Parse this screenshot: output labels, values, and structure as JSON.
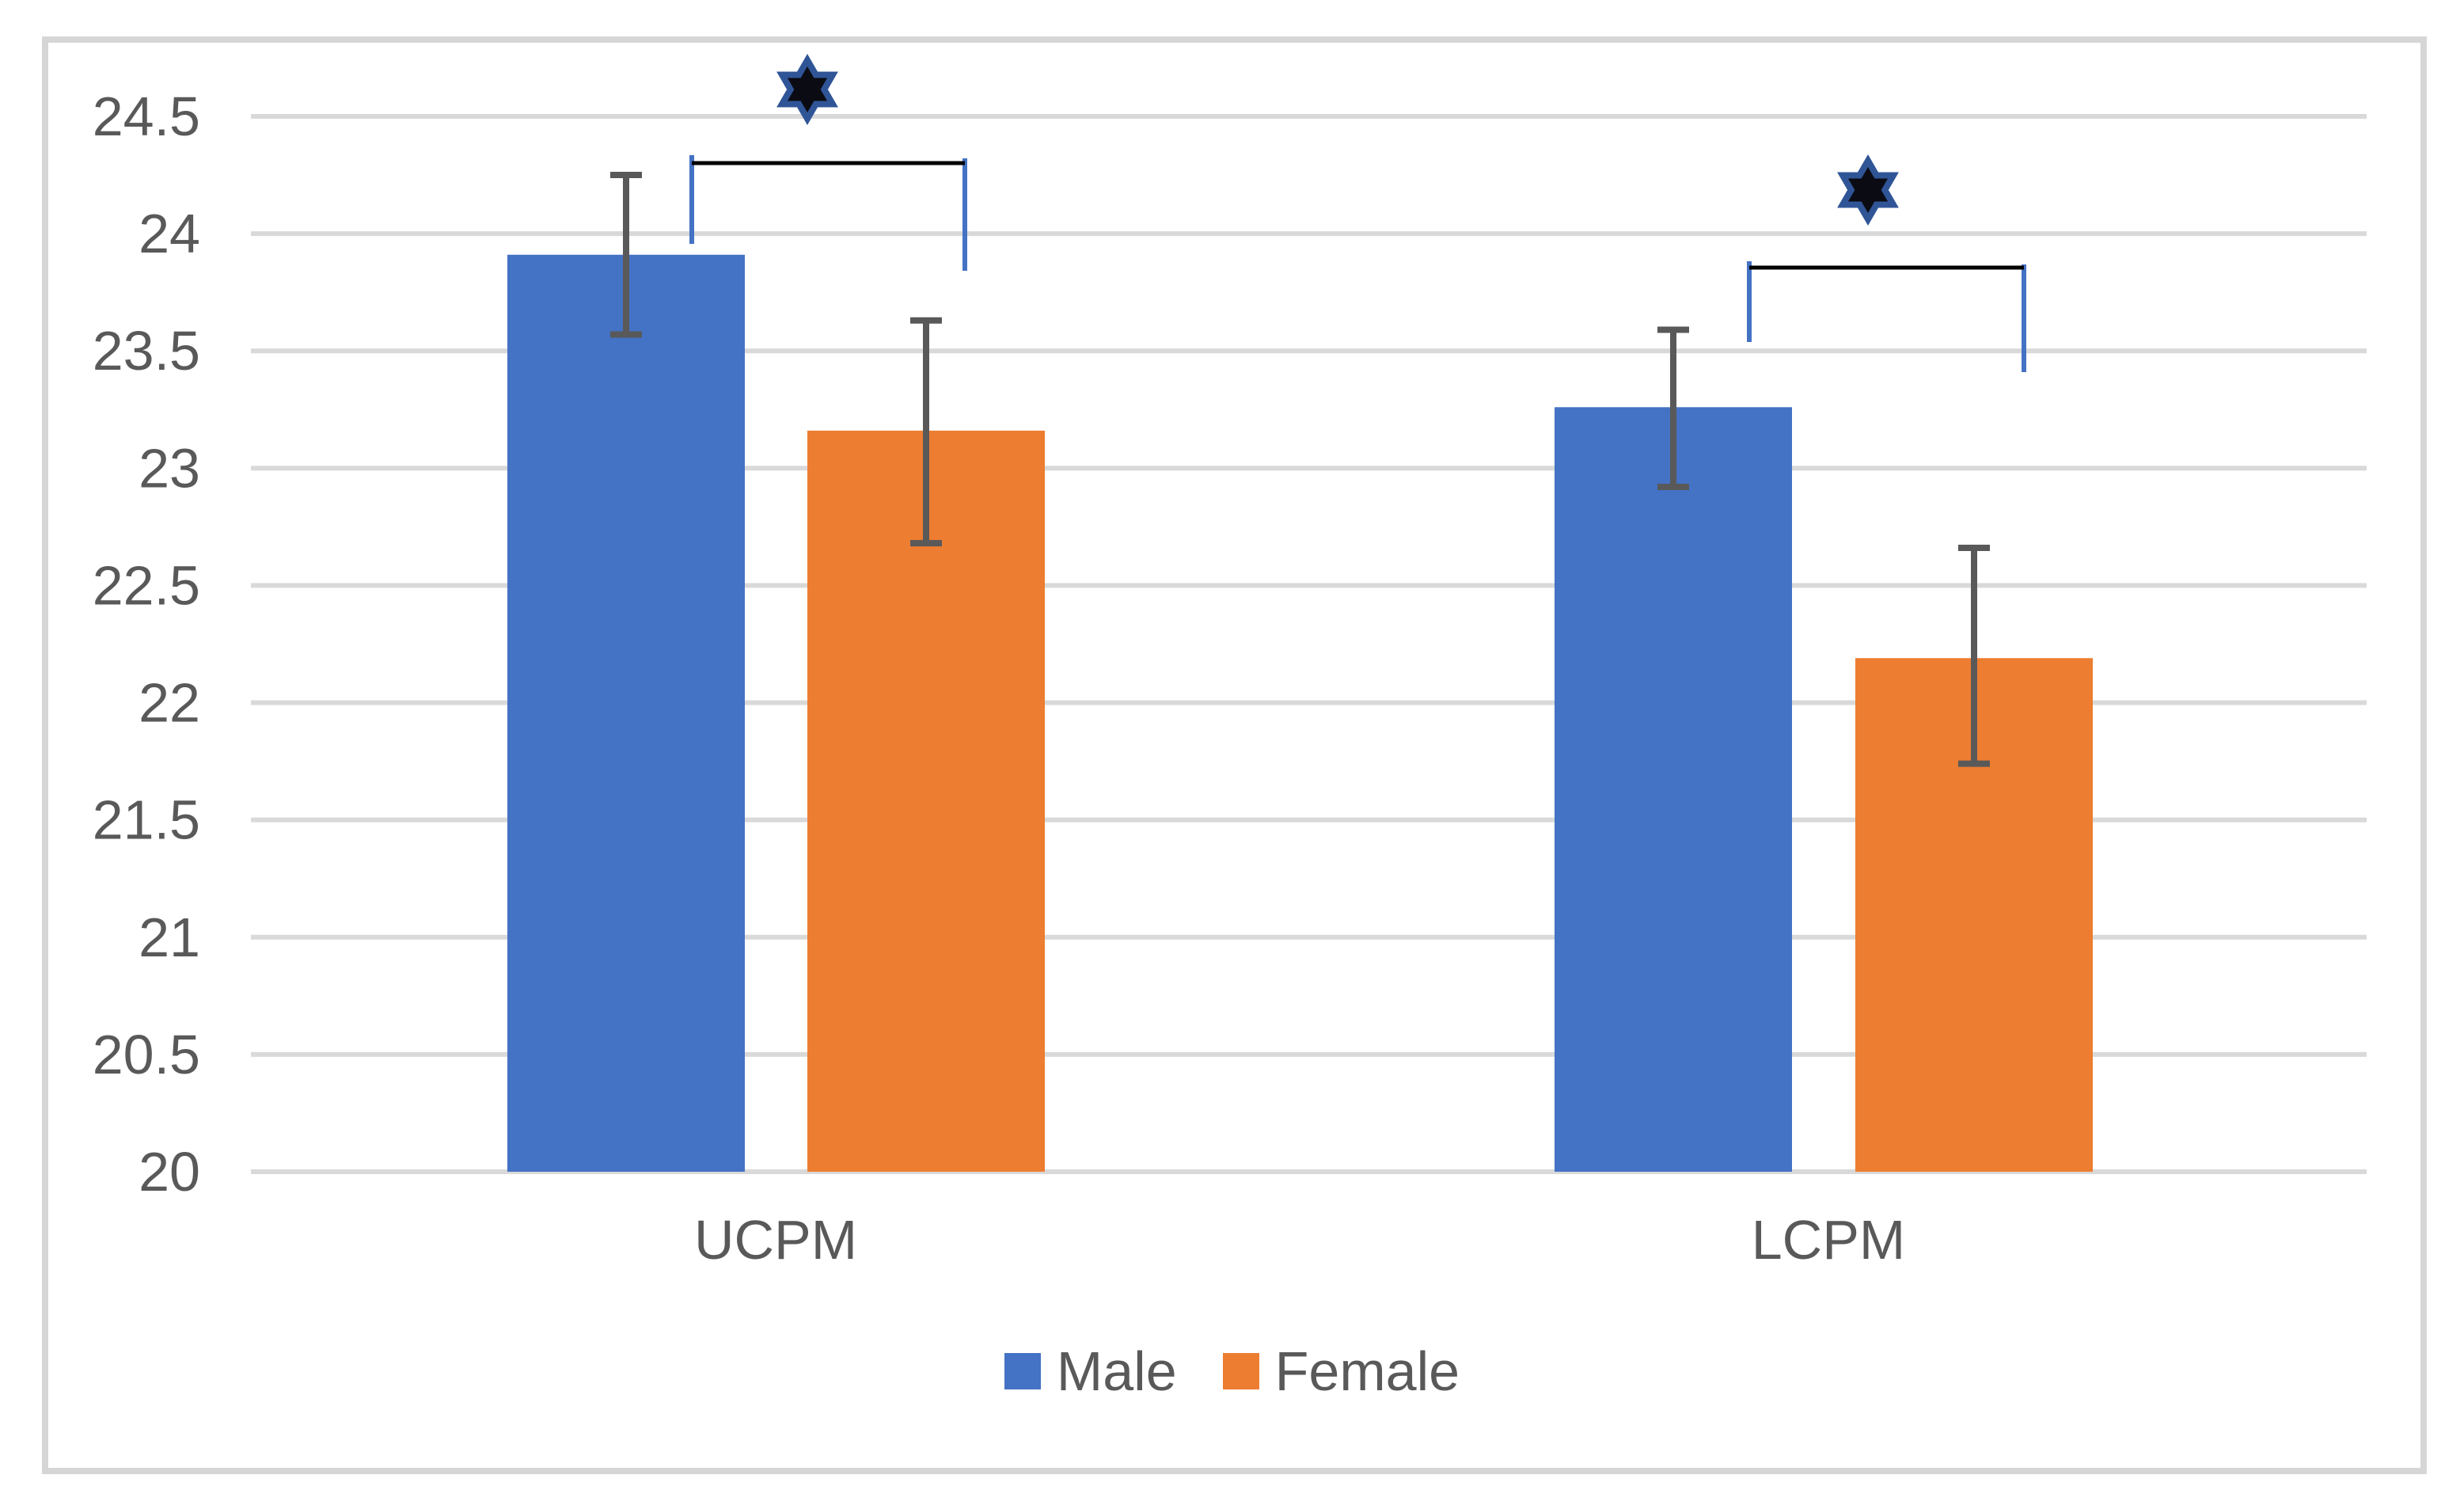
{
  "chart_data": {
    "type": "bar",
    "title": "",
    "categories": [
      "UCPM",
      "LCPM"
    ],
    "series": [
      {
        "name": "Male",
        "color": "#4472C4",
        "values": [
          23.91,
          23.26
        ],
        "error_low": [
          23.57,
          22.92
        ],
        "error_high": [
          24.25,
          23.59
        ]
      },
      {
        "name": "Female",
        "color": "#ED7D31",
        "values": [
          23.16,
          22.19
        ],
        "error_low": [
          22.68,
          21.74
        ],
        "error_high": [
          23.63,
          22.66
        ]
      }
    ],
    "ylim": [
      20,
      24.5
    ],
    "ytick_step": 0.5,
    "yticks": [
      24.5,
      24,
      23.5,
      23,
      22.5,
      22,
      21.5,
      21,
      20.5,
      20
    ],
    "ytick_labels": [
      "24.5",
      "24",
      "23.5",
      "23",
      "22.5",
      "22",
      "21.5",
      "21",
      "20.5",
      "20"
    ],
    "xlabel": "",
    "ylabel": "",
    "grid": "horizontal",
    "legend_position": "bottom",
    "significance_markers": [
      {
        "category": "UCPM",
        "symbol": "six-pointed-star",
        "between": [
          "Male",
          "Female"
        ]
      },
      {
        "category": "LCPM",
        "symbol": "six-pointed-star",
        "between": [
          "Male",
          "Female"
        ]
      }
    ],
    "colors": {
      "gridline": "#D9D9D9",
      "axis_text": "#595959",
      "error_bar": "#595959",
      "bracket_line": "#000000",
      "bracket_leg": "#4472C4",
      "star_fill": "#0B0B13",
      "star_stroke": "#2F5597",
      "frame_border": "#D6D6D6"
    }
  }
}
